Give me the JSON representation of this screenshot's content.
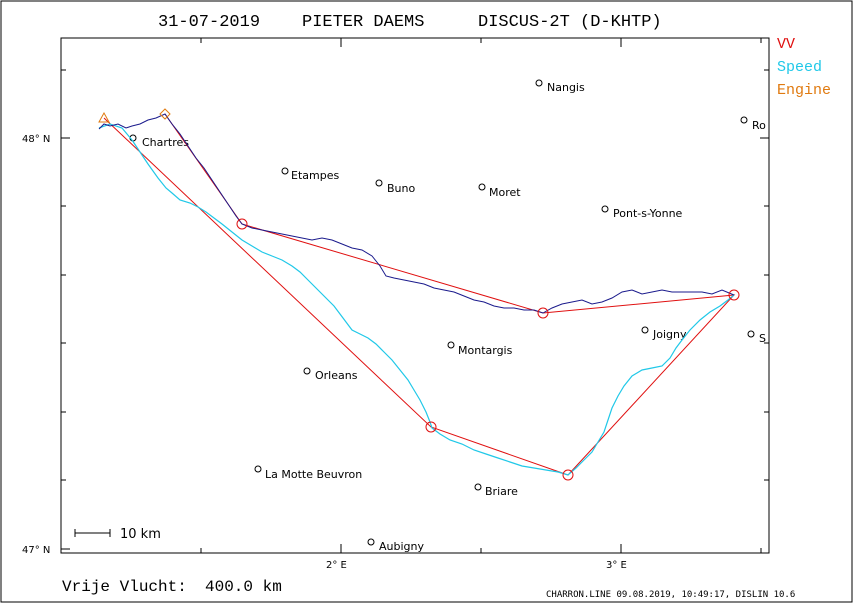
{
  "title": {
    "date": "31-07-2019",
    "pilot": "PIETER DAEMS",
    "glider": "DISCUS-2T (D-KHTP)"
  },
  "legend": [
    {
      "label": "VV",
      "color": "#e01010"
    },
    {
      "label": "Speed",
      "color": "#20c8e8"
    },
    {
      "label": "Engine",
      "color": "#e07a10"
    }
  ],
  "axes": {
    "lat_labels": [
      "48° N",
      "47° N"
    ],
    "lon_labels": [
      "2° E",
      "3° E"
    ]
  },
  "towns": [
    {
      "name": "Nangis"
    },
    {
      "name": "Chartres"
    },
    {
      "name": "Etampes"
    },
    {
      "name": "Buno"
    },
    {
      "name": "Moret"
    },
    {
      "name": "Pont-s-Yonne"
    },
    {
      "name": "Ro"
    },
    {
      "name": "Joigny"
    },
    {
      "name": "S"
    },
    {
      "name": "Montargis"
    },
    {
      "name": "Orleans"
    },
    {
      "name": "La Motte Beuvron"
    },
    {
      "name": "Briare"
    },
    {
      "name": "Aubigny"
    }
  ],
  "scale_bar": "10 km",
  "footer": {
    "flight": "Vrije Vlucht:",
    "distance": "400.0 km",
    "credit": "CHARRON.LINE 09.08.2019, 10:49:17, DISLIN 10.6"
  },
  "colors": {
    "task_line": "#e01010",
    "speed_track": "#20c8e8",
    "altitude_track": "#1a1a8c",
    "turnpoint": "#e01010"
  }
}
